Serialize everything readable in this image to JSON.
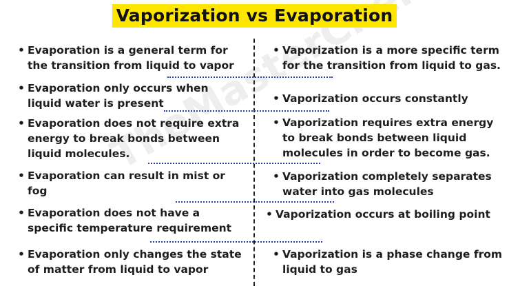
{
  "title": "Vaporization vs Evaporation",
  "watermark": "TheMasterChemistry",
  "colors": {
    "title_highlight": "#ffe600",
    "separator": "#1f3fb3",
    "text": "#1d1d1d"
  },
  "evaporation": [
    {
      "line1": "Evaporation is a general term for",
      "line2": "the transition from liquid to vapor"
    },
    {
      "line1": "Evaporation only occurs when",
      "line2": "liquid water is present"
    },
    {
      "line1": "Evaporation does not require extra",
      "line2": "energy to break bonds between",
      "line3": "liquid molecules."
    },
    {
      "line1": "Evaporation can result in mist or",
      "line2": "fog"
    },
    {
      "line1": "Evaporation does not have a",
      "line2": "specific temperature requirement"
    },
    {
      "line1": "Evaporation only changes the state",
      "line2": "of matter from liquid to vapor"
    }
  ],
  "vaporization": [
    {
      "line1": "Vaporization is a more specific term",
      "line2": "for the transition from liquid to gas."
    },
    {
      "line1": "Vaporization occurs constantly"
    },
    {
      "line1": "Vaporization requires extra energy",
      "line2": "to break bonds between liquid",
      "line3": "molecules in order to become gas."
    },
    {
      "line1": "Vaporization completely separates",
      "line2": "water into gas molecules"
    },
    {
      "line1": "Vaporization occurs at boiling point"
    },
    {
      "line1": "Vaporization is a phase change from",
      "line2": "liquid to gas"
    }
  ]
}
